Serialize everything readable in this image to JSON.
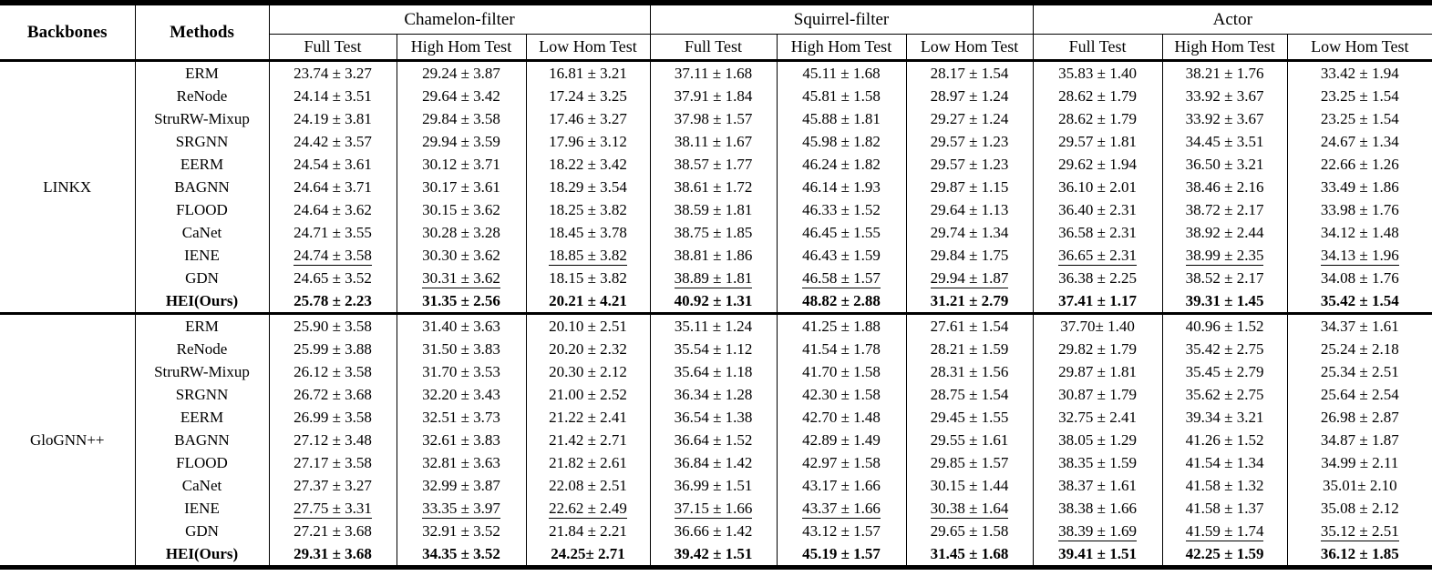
{
  "table": {
    "header": {
      "backbones": "Backbones",
      "methods": "Methods"
    },
    "groups": [
      {
        "name": "Chamelon-filter",
        "subcols": [
          "Full Test",
          "High Hom Test",
          "Low Hom Test"
        ]
      },
      {
        "name": "Squirrel-filter",
        "subcols": [
          "Full Test",
          "High Hom Test",
          "Low Hom Test"
        ]
      },
      {
        "name": "Actor",
        "subcols": [
          "Full Test",
          "High Hom Test",
          "Low Hom Test"
        ]
      }
    ],
    "blocks": [
      {
        "backbone": "LINKX",
        "rows": [
          {
            "method": "ERM",
            "bold": false,
            "cells": [
              {
                "t": "23.74 ± 3.27"
              },
              {
                "t": "29.24 ± 3.87"
              },
              {
                "t": "16.81 ± 3.21"
              },
              {
                "t": "37.11 ± 1.68"
              },
              {
                "t": "45.11 ± 1.68"
              },
              {
                "t": "28.17 ± 1.54"
              },
              {
                "t": "35.83 ± 1.40"
              },
              {
                "t": "38.21 ± 1.76"
              },
              {
                "t": "33.42 ± 1.94"
              }
            ]
          },
          {
            "method": "ReNode",
            "bold": false,
            "cells": [
              {
                "t": "24.14 ± 3.51"
              },
              {
                "t": "29.64 ± 3.42"
              },
              {
                "t": "17.24 ± 3.25"
              },
              {
                "t": "37.91 ± 1.84"
              },
              {
                "t": "45.81 ± 1.58"
              },
              {
                "t": "28.97 ± 1.24"
              },
              {
                "t": "28.62 ± 1.79"
              },
              {
                "t": "33.92 ± 3.67"
              },
              {
                "t": "23.25 ± 1.54"
              }
            ]
          },
          {
            "method": "StruRW-Mixup",
            "bold": false,
            "cells": [
              {
                "t": "24.19 ± 3.81"
              },
              {
                "t": "29.84 ± 3.58"
              },
              {
                "t": "17.46 ± 3.27"
              },
              {
                "t": "37.98 ± 1.57"
              },
              {
                "t": "45.88 ± 1.81"
              },
              {
                "t": "29.27 ± 1.24"
              },
              {
                "t": "28.62 ± 1.79"
              },
              {
                "t": "33.92 ± 3.67"
              },
              {
                "t": "23.25 ± 1.54"
              }
            ]
          },
          {
            "method": "SRGNN",
            "bold": false,
            "cells": [
              {
                "t": "24.42 ± 3.57"
              },
              {
                "t": "29.94 ± 3.59"
              },
              {
                "t": "17.96 ± 3.12"
              },
              {
                "t": "38.11 ± 1.67"
              },
              {
                "t": "45.98 ± 1.82"
              },
              {
                "t": "29.57 ± 1.23"
              },
              {
                "t": "29.57 ± 1.81"
              },
              {
                "t": "34.45 ± 3.51"
              },
              {
                "t": "24.67 ± 1.34"
              }
            ]
          },
          {
            "method": "EERM",
            "bold": false,
            "cells": [
              {
                "t": "24.54 ± 3.61"
              },
              {
                "t": "30.12 ± 3.71"
              },
              {
                "t": "18.22 ± 3.42"
              },
              {
                "t": "38.57 ± 1.77"
              },
              {
                "t": "46.24 ± 1.82"
              },
              {
                "t": "29.57 ± 1.23"
              },
              {
                "t": "29.62 ± 1.94"
              },
              {
                "t": "36.50 ± 3.21"
              },
              {
                "t": "22.66 ± 1.26"
              }
            ]
          },
          {
            "method": "BAGNN",
            "bold": false,
            "cells": [
              {
                "t": "24.64 ± 3.71"
              },
              {
                "t": "30.17 ± 3.61"
              },
              {
                "t": "18.29 ± 3.54"
              },
              {
                "t": "38.61 ± 1.72"
              },
              {
                "t": "46.14 ± 1.93"
              },
              {
                "t": "29.87 ± 1.15"
              },
              {
                "t": "36.10 ± 2.01"
              },
              {
                "t": "38.46 ± 2.16"
              },
              {
                "t": "33.49 ± 1.86"
              }
            ]
          },
          {
            "method": "FLOOD",
            "bold": false,
            "cells": [
              {
                "t": "24.64 ± 3.62"
              },
              {
                "t": "30.15 ± 3.62"
              },
              {
                "t": "18.25 ± 3.82"
              },
              {
                "t": "38.59 ± 1.81"
              },
              {
                "t": "46.33 ± 1.52"
              },
              {
                "t": "29.64 ± 1.13"
              },
              {
                "t": "36.40 ± 2.31"
              },
              {
                "t": "38.72 ± 2.17"
              },
              {
                "t": "33.98 ± 1.76"
              }
            ]
          },
          {
            "method": "CaNet",
            "bold": false,
            "cells": [
              {
                "t": "24.71 ± 3.55"
              },
              {
                "t": "30.28 ± 3.28"
              },
              {
                "t": "18.45 ± 3.78"
              },
              {
                "t": "38.75 ± 1.85"
              },
              {
                "t": "46.45 ± 1.55"
              },
              {
                "t": "29.74 ± 1.34"
              },
              {
                "t": "36.58 ± 2.31"
              },
              {
                "t": "38.92 ± 2.44"
              },
              {
                "t": "34.12 ± 1.48"
              }
            ]
          },
          {
            "method": "IENE",
            "bold": false,
            "cells": [
              {
                "t": "24.74 ± 3.58",
                "u": true
              },
              {
                "t": "30.30 ± 3.62"
              },
              {
                "t": "18.85 ± 3.82",
                "u": true
              },
              {
                "t": "38.81 ± 1.86"
              },
              {
                "t": "46.43 ± 1.59"
              },
              {
                "t": "29.84 ± 1.75"
              },
              {
                "t": "36.65 ± 2.31",
                "u": true
              },
              {
                "t": "38.99 ± 2.35",
                "u": true
              },
              {
                "t": "34.13 ± 1.96",
                "u": true
              }
            ]
          },
          {
            "method": "GDN",
            "bold": false,
            "cells": [
              {
                "t": "24.65 ± 3.52"
              },
              {
                "t": "30.31 ± 3.62",
                "u": true
              },
              {
                "t": "18.15 ± 3.82"
              },
              {
                "t": "38.89 ± 1.81",
                "u": true
              },
              {
                "t": "46.58 ± 1.57",
                "u": true
              },
              {
                "t": "29.94 ± 1.87",
                "u": true
              },
              {
                "t": "36.38 ± 2.25"
              },
              {
                "t": "38.52 ± 2.17"
              },
              {
                "t": "34.08 ± 1.76"
              }
            ]
          },
          {
            "method": "HEI(Ours)",
            "bold": true,
            "cells": [
              {
                "t": "25.78 ± 2.23"
              },
              {
                "t": "31.35 ± 2.56"
              },
              {
                "t": "20.21 ± 4.21"
              },
              {
                "t": "40.92 ± 1.31"
              },
              {
                "t": "48.82 ± 2.88"
              },
              {
                "t": "31.21 ± 2.79"
              },
              {
                "t": "37.41 ± 1.17"
              },
              {
                "t": "39.31 ± 1.45"
              },
              {
                "t": "35.42 ± 1.54"
              }
            ]
          }
        ]
      },
      {
        "backbone": "GloGNN++",
        "rows": [
          {
            "method": "ERM",
            "bold": false,
            "cells": [
              {
                "t": "25.90 ± 3.58"
              },
              {
                "t": "31.40 ± 3.63"
              },
              {
                "t": "20.10 ± 2.51"
              },
              {
                "t": "35.11 ± 1.24"
              },
              {
                "t": "41.25 ± 1.88"
              },
              {
                "t": "27.61 ± 1.54"
              },
              {
                "t": "37.70± 1.40"
              },
              {
                "t": "40.96 ± 1.52"
              },
              {
                "t": "34.37 ± 1.61"
              }
            ]
          },
          {
            "method": "ReNode",
            "bold": false,
            "cells": [
              {
                "t": "25.99 ± 3.88"
              },
              {
                "t": "31.50 ± 3.83"
              },
              {
                "t": "20.20 ± 2.32"
              },
              {
                "t": "35.54 ± 1.12"
              },
              {
                "t": "41.54 ± 1.78"
              },
              {
                "t": "28.21 ± 1.59"
              },
              {
                "t": "29.82 ± 1.79"
              },
              {
                "t": "35.42 ± 2.75"
              },
              {
                "t": "25.24 ± 2.18"
              }
            ]
          },
          {
            "method": "StruRW-Mixup",
            "bold": false,
            "cells": [
              {
                "t": "26.12 ± 3.58"
              },
              {
                "t": "31.70 ± 3.53"
              },
              {
                "t": "20.30 ± 2.12"
              },
              {
                "t": "35.64 ± 1.18"
              },
              {
                "t": "41.70 ± 1.58"
              },
              {
                "t": "28.31 ± 1.56"
              },
              {
                "t": "29.87 ± 1.81"
              },
              {
                "t": "35.45 ± 2.79"
              },
              {
                "t": "25.34 ± 2.51"
              }
            ]
          },
          {
            "method": "SRGNN",
            "bold": false,
            "cells": [
              {
                "t": "26.72 ± 3.68"
              },
              {
                "t": "32.20 ± 3.43"
              },
              {
                "t": "21.00 ± 2.52"
              },
              {
                "t": "36.34 ± 1.28"
              },
              {
                "t": "42.30 ± 1.58"
              },
              {
                "t": "28.75 ± 1.54"
              },
              {
                "t": "30.87 ± 1.79"
              },
              {
                "t": "35.62 ± 2.75"
              },
              {
                "t": "25.64 ± 2.54"
              }
            ]
          },
          {
            "method": "EERM",
            "bold": false,
            "cells": [
              {
                "t": "26.99 ± 3.58"
              },
              {
                "t": "32.51 ± 3.73"
              },
              {
                "t": "21.22 ± 2.41"
              },
              {
                "t": "36.54 ± 1.38"
              },
              {
                "t": "42.70 ± 1.48"
              },
              {
                "t": "29.45 ± 1.55"
              },
              {
                "t": "32.75 ± 2.41"
              },
              {
                "t": "39.34 ± 3.21"
              },
              {
                "t": "26.98 ± 2.87"
              }
            ]
          },
          {
            "method": "BAGNN",
            "bold": false,
            "cells": [
              {
                "t": "27.12 ± 3.48"
              },
              {
                "t": "32.61 ± 3.83"
              },
              {
                "t": "21.42 ± 2.71"
              },
              {
                "t": "36.64 ± 1.52"
              },
              {
                "t": "42.89 ± 1.49"
              },
              {
                "t": "29.55 ± 1.61"
              },
              {
                "t": "38.05 ± 1.29"
              },
              {
                "t": "41.26 ± 1.52"
              },
              {
                "t": "34.87 ± 1.87"
              }
            ]
          },
          {
            "method": "FLOOD",
            "bold": false,
            "cells": [
              {
                "t": "27.17 ± 3.58"
              },
              {
                "t": "32.81 ± 3.63"
              },
              {
                "t": "21.82 ± 2.61"
              },
              {
                "t": "36.84 ± 1.42"
              },
              {
                "t": "42.97 ± 1.58"
              },
              {
                "t": "29.85 ± 1.57"
              },
              {
                "t": "38.35 ± 1.59"
              },
              {
                "t": "41.54 ± 1.34"
              },
              {
                "t": "34.99 ± 2.11"
              }
            ]
          },
          {
            "method": "CaNet",
            "bold": false,
            "cells": [
              {
                "t": "27.37 ± 3.27"
              },
              {
                "t": "32.99 ± 3.87"
              },
              {
                "t": "22.08 ± 2.51"
              },
              {
                "t": "36.99 ± 1.51"
              },
              {
                "t": "43.17 ± 1.66"
              },
              {
                "t": "30.15 ± 1.44"
              },
              {
                "t": "38.37 ± 1.61"
              },
              {
                "t": "41.58 ± 1.32"
              },
              {
                "t": "35.01± 2.10"
              }
            ]
          },
          {
            "method": "IENE",
            "bold": false,
            "cells": [
              {
                "t": "27.75 ± 3.31",
                "u": true
              },
              {
                "t": "33.35 ± 3.97",
                "u": true
              },
              {
                "t": "22.62 ± 2.49",
                "u": true
              },
              {
                "t": "37.15 ± 1.66",
                "u": true
              },
              {
                "t": "43.37 ± 1.66",
                "u": true
              },
              {
                "t": "30.38 ± 1.64",
                "u": true
              },
              {
                "t": "38.38 ± 1.66"
              },
              {
                "t": "41.58 ± 1.37"
              },
              {
                "t": "35.08 ± 2.12"
              }
            ]
          },
          {
            "method": "GDN",
            "bold": false,
            "cells": [
              {
                "t": "27.21 ± 3.68"
              },
              {
                "t": "32.91 ± 3.52"
              },
              {
                "t": "21.84 ± 2.21"
              },
              {
                "t": "36.66 ± 1.42"
              },
              {
                "t": "43.12 ± 1.57"
              },
              {
                "t": "29.65 ± 1.58"
              },
              {
                "t": "38.39 ± 1.69",
                "u": true
              },
              {
                "t": "41.59 ± 1.74",
                "u": true
              },
              {
                "t": "35.12 ± 2.51",
                "u": true
              }
            ]
          },
          {
            "method": "HEI(Ours)",
            "bold": true,
            "cells": [
              {
                "t": "29.31 ± 3.68"
              },
              {
                "t": "34.35 ± 3.52"
              },
              {
                "t": "24.25± 2.71"
              },
              {
                "t": "39.42 ± 1.51"
              },
              {
                "t": "45.19 ± 1.57"
              },
              {
                "t": "31.45 ± 1.68"
              },
              {
                "t": "39.41 ± 1.51"
              },
              {
                "t": "42.25 ± 1.59"
              },
              {
                "t": "36.12 ± 1.85"
              }
            ]
          }
        ]
      }
    ]
  }
}
